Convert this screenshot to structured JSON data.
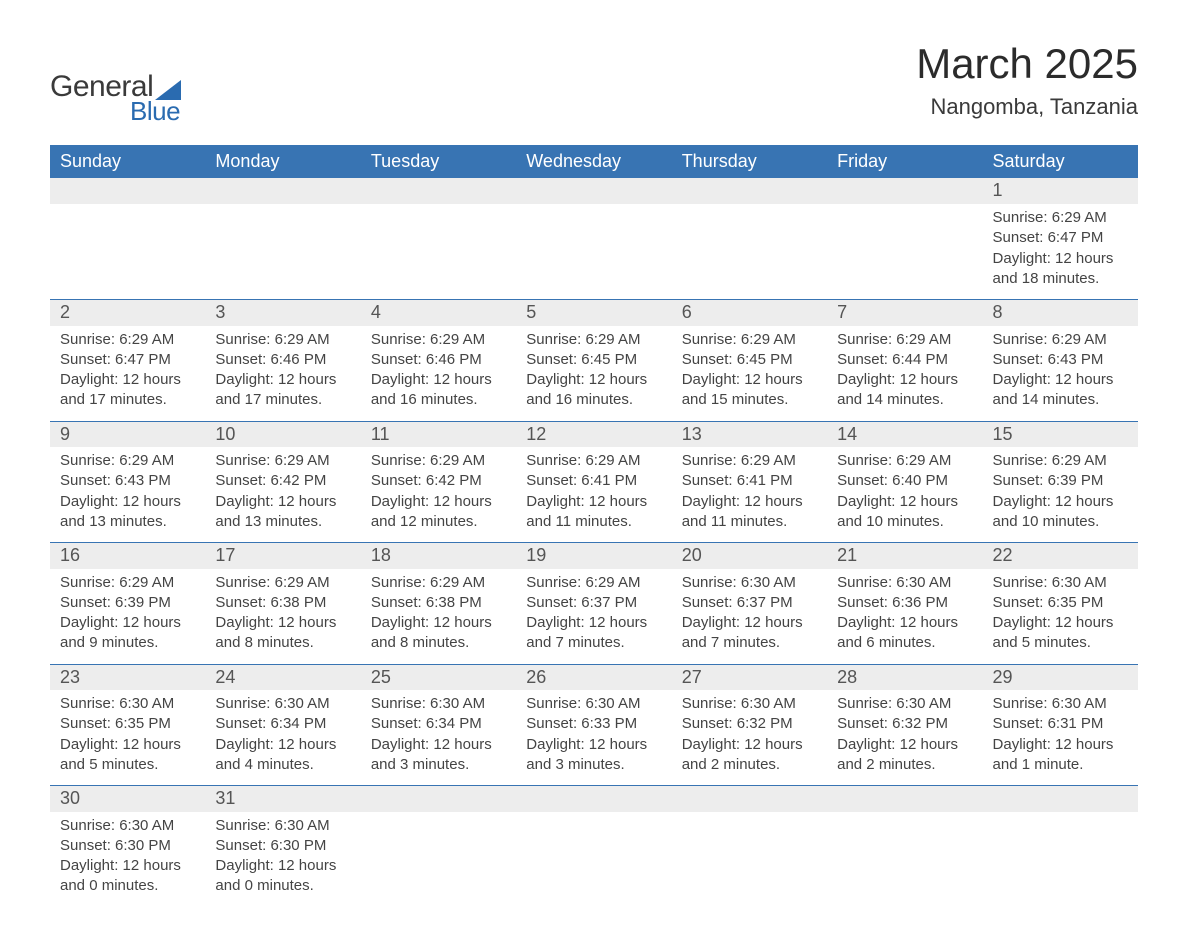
{
  "logo": {
    "word1": "General",
    "word2": "Blue",
    "accent_color": "#2a6bb0"
  },
  "title": "March 2025",
  "location": "Nangomba, Tanzania",
  "colors": {
    "header_bg": "#3874b3",
    "header_text": "#ffffff",
    "daynum_bg": "#ededed",
    "border": "#3874b3",
    "text": "#444444"
  },
  "columns": [
    "Sunday",
    "Monday",
    "Tuesday",
    "Wednesday",
    "Thursday",
    "Friday",
    "Saturday"
  ],
  "weeks": [
    [
      null,
      null,
      null,
      null,
      null,
      null,
      {
        "n": "1",
        "sr": "6:29 AM",
        "ss": "6:47 PM",
        "dl": "12 hours and 18 minutes."
      }
    ],
    [
      {
        "n": "2",
        "sr": "6:29 AM",
        "ss": "6:47 PM",
        "dl": "12 hours and 17 minutes."
      },
      {
        "n": "3",
        "sr": "6:29 AM",
        "ss": "6:46 PM",
        "dl": "12 hours and 17 minutes."
      },
      {
        "n": "4",
        "sr": "6:29 AM",
        "ss": "6:46 PM",
        "dl": "12 hours and 16 minutes."
      },
      {
        "n": "5",
        "sr": "6:29 AM",
        "ss": "6:45 PM",
        "dl": "12 hours and 16 minutes."
      },
      {
        "n": "6",
        "sr": "6:29 AM",
        "ss": "6:45 PM",
        "dl": "12 hours and 15 minutes."
      },
      {
        "n": "7",
        "sr": "6:29 AM",
        "ss": "6:44 PM",
        "dl": "12 hours and 14 minutes."
      },
      {
        "n": "8",
        "sr": "6:29 AM",
        "ss": "6:43 PM",
        "dl": "12 hours and 14 minutes."
      }
    ],
    [
      {
        "n": "9",
        "sr": "6:29 AM",
        "ss": "6:43 PM",
        "dl": "12 hours and 13 minutes."
      },
      {
        "n": "10",
        "sr": "6:29 AM",
        "ss": "6:42 PM",
        "dl": "12 hours and 13 minutes."
      },
      {
        "n": "11",
        "sr": "6:29 AM",
        "ss": "6:42 PM",
        "dl": "12 hours and 12 minutes."
      },
      {
        "n": "12",
        "sr": "6:29 AM",
        "ss": "6:41 PM",
        "dl": "12 hours and 11 minutes."
      },
      {
        "n": "13",
        "sr": "6:29 AM",
        "ss": "6:41 PM",
        "dl": "12 hours and 11 minutes."
      },
      {
        "n": "14",
        "sr": "6:29 AM",
        "ss": "6:40 PM",
        "dl": "12 hours and 10 minutes."
      },
      {
        "n": "15",
        "sr": "6:29 AM",
        "ss": "6:39 PM",
        "dl": "12 hours and 10 minutes."
      }
    ],
    [
      {
        "n": "16",
        "sr": "6:29 AM",
        "ss": "6:39 PM",
        "dl": "12 hours and 9 minutes."
      },
      {
        "n": "17",
        "sr": "6:29 AM",
        "ss": "6:38 PM",
        "dl": "12 hours and 8 minutes."
      },
      {
        "n": "18",
        "sr": "6:29 AM",
        "ss": "6:38 PM",
        "dl": "12 hours and 8 minutes."
      },
      {
        "n": "19",
        "sr": "6:29 AM",
        "ss": "6:37 PM",
        "dl": "12 hours and 7 minutes."
      },
      {
        "n": "20",
        "sr": "6:30 AM",
        "ss": "6:37 PM",
        "dl": "12 hours and 7 minutes."
      },
      {
        "n": "21",
        "sr": "6:30 AM",
        "ss": "6:36 PM",
        "dl": "12 hours and 6 minutes."
      },
      {
        "n": "22",
        "sr": "6:30 AM",
        "ss": "6:35 PM",
        "dl": "12 hours and 5 minutes."
      }
    ],
    [
      {
        "n": "23",
        "sr": "6:30 AM",
        "ss": "6:35 PM",
        "dl": "12 hours and 5 minutes."
      },
      {
        "n": "24",
        "sr": "6:30 AM",
        "ss": "6:34 PM",
        "dl": "12 hours and 4 minutes."
      },
      {
        "n": "25",
        "sr": "6:30 AM",
        "ss": "6:34 PM",
        "dl": "12 hours and 3 minutes."
      },
      {
        "n": "26",
        "sr": "6:30 AM",
        "ss": "6:33 PM",
        "dl": "12 hours and 3 minutes."
      },
      {
        "n": "27",
        "sr": "6:30 AM",
        "ss": "6:32 PM",
        "dl": "12 hours and 2 minutes."
      },
      {
        "n": "28",
        "sr": "6:30 AM",
        "ss": "6:32 PM",
        "dl": "12 hours and 2 minutes."
      },
      {
        "n": "29",
        "sr": "6:30 AM",
        "ss": "6:31 PM",
        "dl": "12 hours and 1 minute."
      }
    ],
    [
      {
        "n": "30",
        "sr": "6:30 AM",
        "ss": "6:30 PM",
        "dl": "12 hours and 0 minutes."
      },
      {
        "n": "31",
        "sr": "6:30 AM",
        "ss": "6:30 PM",
        "dl": "12 hours and 0 minutes."
      },
      null,
      null,
      null,
      null,
      null
    ]
  ],
  "labels": {
    "sunrise": "Sunrise: ",
    "sunset": "Sunset: ",
    "daylight": "Daylight: "
  }
}
